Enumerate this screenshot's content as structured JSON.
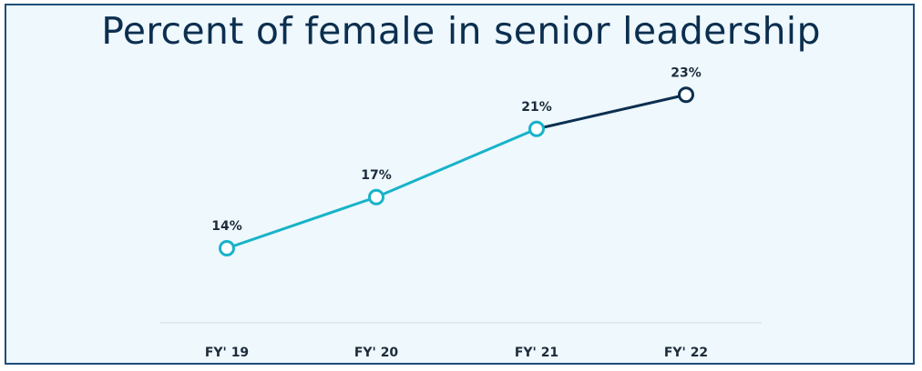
{
  "chart_data": {
    "type": "line",
    "title": "Percent of female in senior leadership",
    "categories": [
      "FY' 19",
      "FY' 20",
      "FY' 21",
      "FY' 22"
    ],
    "series": [
      {
        "values": [
          14,
          17,
          21,
          23
        ],
        "data_labels": [
          "14%",
          "17%",
          "21%",
          "23%"
        ],
        "colors": [
          "#17b3c8",
          "#17b3c8",
          "#17b3c8",
          "#0c2f4f"
        ]
      }
    ],
    "xlabel": "",
    "ylabel": "",
    "ylim": [
      0,
      30
    ],
    "grid": false,
    "legend": "none"
  }
}
